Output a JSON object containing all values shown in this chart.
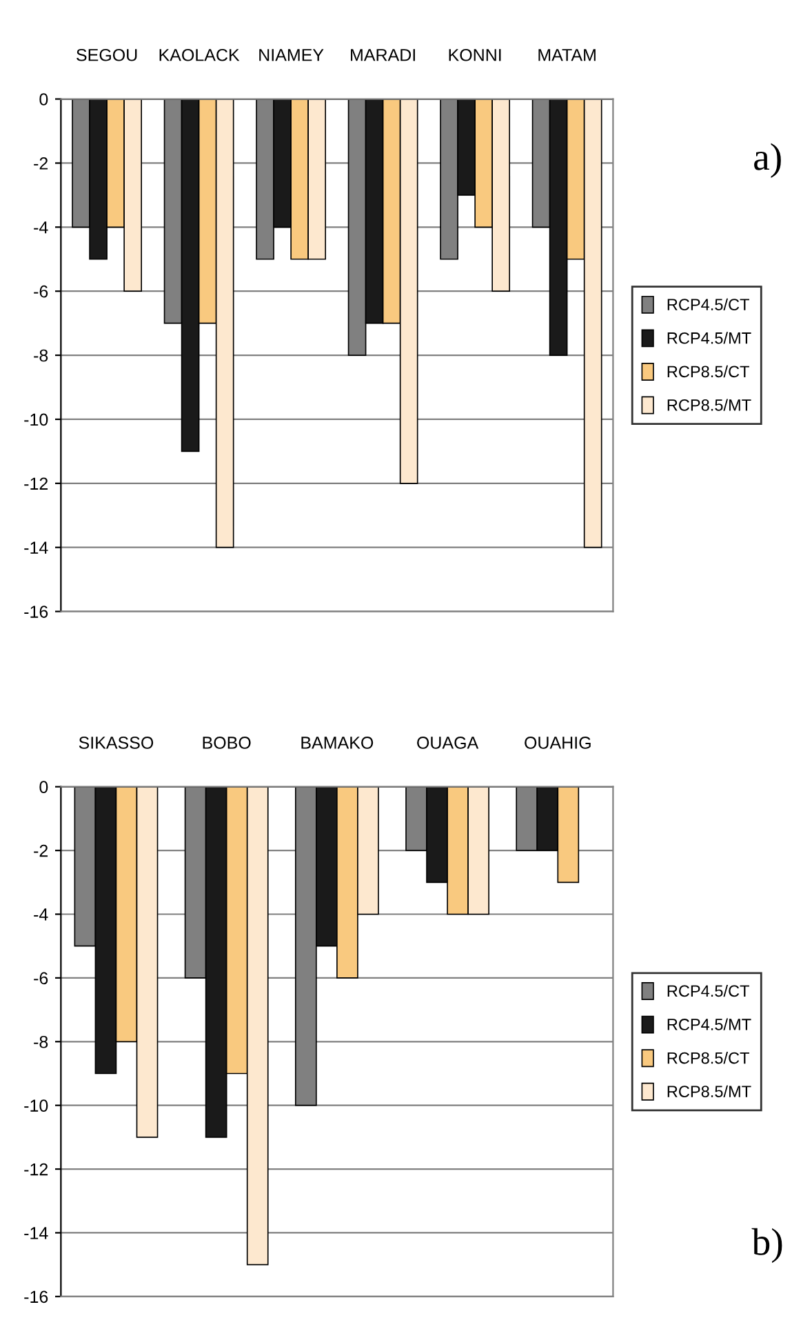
{
  "chart_data": [
    {
      "type": "bar",
      "categories": [
        "SEGOU",
        "KAOLACK",
        "NIAMEY",
        "MARADI",
        "KONNI",
        "MATAM"
      ],
      "series": [
        {
          "name": "RCP4.5/CT",
          "color": "#808080",
          "values": [
            -4,
            -7,
            -5,
            -8,
            -5,
            -4
          ]
        },
        {
          "name": "RCP4.5/MT",
          "color": "#1a1a1a",
          "values": [
            -5,
            -11,
            -4,
            -7,
            -3,
            -8
          ]
        },
        {
          "name": "RCP8.5/CT",
          "color": "#f9c97f",
          "values": [
            -4,
            -7,
            -5,
            -7,
            -4,
            -5
          ]
        },
        {
          "name": "RCP8.5/MT",
          "color": "#fde8cf",
          "values": [
            -6,
            -14,
            -5,
            -12,
            -6,
            -14
          ]
        }
      ],
      "ylim": [
        -16,
        0
      ],
      "yticks": [
        0,
        -2,
        -4,
        -6,
        -8,
        -10,
        -12,
        -14,
        -16
      ],
      "grid": "y",
      "legend": "right",
      "annotations": [
        "a)"
      ]
    },
    {
      "type": "bar",
      "categories": [
        "SIKASSO",
        "BOBO",
        "BAMAKO",
        "OUAGA",
        "OUAHIG"
      ],
      "series": [
        {
          "name": "RCP4.5/CT",
          "color": "#808080",
          "values": [
            -5,
            -6,
            -10,
            -2,
            -2
          ]
        },
        {
          "name": "RCP4.5/MT",
          "color": "#1a1a1a",
          "values": [
            -9,
            -11,
            -5,
            -3,
            -2
          ]
        },
        {
          "name": "RCP8.5/CT",
          "color": "#f9c97f",
          "values": [
            -8,
            -9,
            -6,
            -4,
            -3
          ]
        },
        {
          "name": "RCP8.5/MT",
          "color": "#fde8cf",
          "values": [
            -11,
            -15,
            -4,
            -4,
            null
          ]
        }
      ],
      "ylim": [
        -16,
        0
      ],
      "yticks": [
        0,
        -2,
        -4,
        -6,
        -8,
        -10,
        -12,
        -14,
        -16
      ],
      "grid": "y",
      "legend": "right",
      "annotations": [
        "b)"
      ]
    }
  ]
}
